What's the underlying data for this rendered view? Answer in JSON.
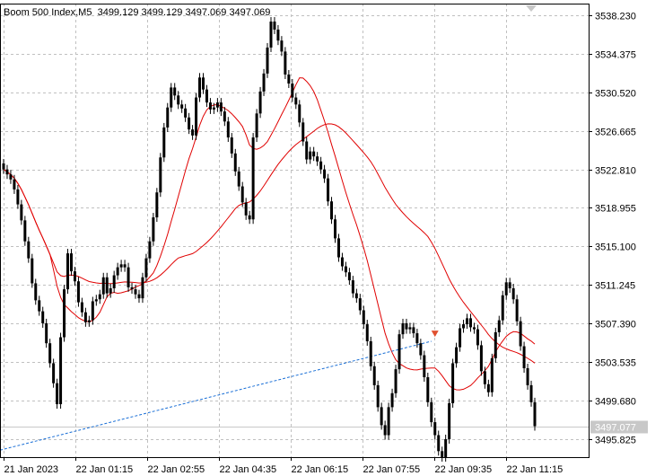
{
  "header": {
    "symbol": "Boom 500 Index,M5",
    "open": "3499.129",
    "high": "3499.129",
    "low": "3497.069",
    "close": "3497.069"
  },
  "colors": {
    "candle": "#000000",
    "grid": "#c0c0c0",
    "ma": "#e00000",
    "trendline": "#1a6fd6",
    "price_label_bg": "#c8c8c8",
    "price_label_text": "#ffffff",
    "marker": "#e05030"
  },
  "chart_data": {
    "type": "candlestick",
    "y_ticks": [
      "3538.230",
      "3534.375",
      "3530.520",
      "3526.665",
      "3522.810",
      "3518.955",
      "3515.100",
      "3511.245",
      "3507.390",
      "3503.535",
      "3499.680",
      "3495.825"
    ],
    "ylim": [
      3494.0,
      3539.4
    ],
    "x_ticks": [
      "21 Jan 2023",
      "22 Jan 01:15",
      "22 Jan 02:55",
      "22 Jan 04:35",
      "22 Jan 06:15",
      "22 Jan 07:55",
      "22 Jan 09:35",
      "22 Jan 11:15"
    ],
    "current_price": "3497.077",
    "grid": true,
    "closes": [
      3522.8,
      3522.3,
      3521.8,
      3520.8,
      3519.3,
      3517.7,
      3515.6,
      3513.9,
      3511.4,
      3509.7,
      3508.6,
      3507.4,
      3505.4,
      3503.4,
      3501.4,
      3499.3,
      3506.0,
      3510.8,
      3514.4,
      3512.6,
      3511.6,
      3509.5,
      3508.5,
      3507.5,
      3507.7,
      3509.6,
      3509.8,
      3510.3,
      3512.0,
      3510.4,
      3510.9,
      3512.2,
      3513.0,
      3513.3,
      3513.0,
      3511.0,
      3510.8,
      3510.3,
      3509.9,
      3512.0,
      3513.9,
      3515.6,
      3518.0,
      3520.5,
      3524.0,
      3527.0,
      3529.0,
      3531.0,
      3530.2,
      3529.3,
      3528.9,
      3528.0,
      3526.8,
      3526.2,
      3530.0,
      3532.0,
      3530.8,
      3529.5,
      3528.8,
      3529.0,
      3529.5,
      3528.6,
      3527.6,
      3526.0,
      3524.4,
      3522.6,
      3521.1,
      3519.5,
      3518.2,
      3517.8,
      3526.0,
      3528.4,
      3530.6,
      3532.4,
      3535.0,
      3537.6,
      3536.8,
      3535.7,
      3534.6,
      3532.3,
      3531.4,
      3530.0,
      3529.3,
      3527.5,
      3525.6,
      3523.8,
      3524.6,
      3524.1,
      3523.6,
      3522.8,
      3521.9,
      3519.6,
      3517.8,
      3515.9,
      3514.0,
      3513.1,
      3512.5,
      3511.7,
      3510.4,
      3509.9,
      3508.7,
      3507.3,
      3505.6,
      3503.1,
      3501.2,
      3499.0,
      3497.2,
      3496.2,
      3499.0,
      3500.4,
      3502.8,
      3506.3,
      3507.4,
      3506.8,
      3507.0,
      3506.4,
      3505.4,
      3504.2,
      3502.0,
      3499.5,
      3497.5,
      3496.2,
      3494.6,
      3494.0,
      3495.8,
      3499.4,
      3503.4,
      3505.0,
      3506.9,
      3507.3,
      3507.9,
      3507.0,
      3506.8,
      3505.2,
      3502.6,
      3501.3,
      3500.5,
      3503.9,
      3506.5,
      3507.7,
      3510.2,
      3511.5,
      3510.9,
      3509.8,
      3507.6,
      3505.1,
      3502.9,
      3501.2,
      3499.5,
      3497.1
    ]
  }
}
